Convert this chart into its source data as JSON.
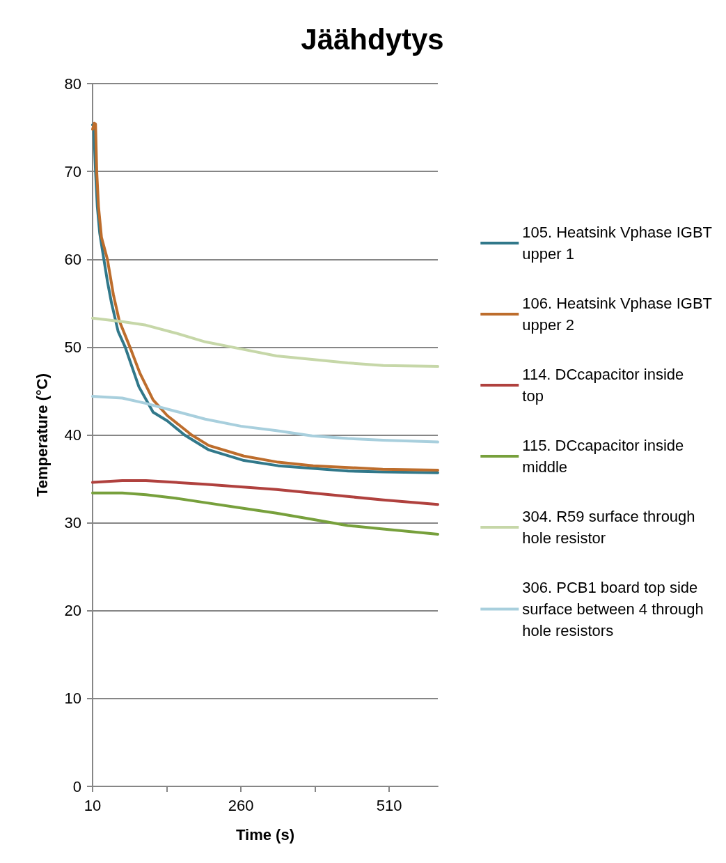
{
  "chart_data": {
    "type": "line",
    "title": "Jäähdytys",
    "xlabel": "Time (s)",
    "ylabel": "Temperature (°C)",
    "xlim": [
      10,
      592
    ],
    "xticks": [
      10,
      {
        "value": 135,
        "label": null
      },
      260,
      {
        "value": 385,
        "label": null
      },
      510
    ],
    "ylim": [
      0,
      80
    ],
    "yticks": [
      0,
      10,
      20,
      30,
      40,
      50,
      60,
      70,
      80
    ],
    "grid": "y",
    "legend": "right",
    "marker": "none",
    "line_style": "solid",
    "series": [
      {
        "name": "105. Heatsink Vphase IGBT upper 1",
        "color": "#31788a",
        "x": [
          10,
          12,
          15,
          18,
          22,
          29,
          35,
          42,
          53,
          65,
          88,
          112,
          136,
          165,
          206,
          265,
          323,
          382,
          441,
          499,
          592
        ],
        "values": [
          75.3,
          75.2,
          70,
          66,
          63,
          60,
          57.5,
          55,
          51.8,
          50,
          45.5,
          42.6,
          41.6,
          40,
          38.3,
          37.1,
          36.5,
          36.2,
          35.9,
          35.8,
          35.7
        ]
      },
      {
        "name": "106. Heatsink Vphase IGBT upper 2",
        "color": "#bd6d2c",
        "x": [
          10,
          13,
          15,
          17,
          20,
          25,
          35,
          45,
          55,
          73,
          90,
          112,
          136,
          177,
          206,
          265,
          323,
          382,
          441,
          499,
          592
        ],
        "values": [
          74.8,
          75.5,
          75.4,
          70,
          66,
          62.5,
          60,
          56,
          53,
          50,
          47,
          44,
          42.2,
          40,
          38.8,
          37.6,
          36.9,
          36.5,
          36.3,
          36.1,
          36
        ]
      },
      {
        "name": "114. DCcapacitor inside top",
        "color": "#b0413e",
        "x": [
          10,
          60,
          100,
          150,
          200,
          260,
          320,
          380,
          440,
          500,
          592
        ],
        "values": [
          34.6,
          34.8,
          34.8,
          34.6,
          34.4,
          34.1,
          33.8,
          33.4,
          33,
          32.6,
          32.1
        ]
      },
      {
        "name": "115. DCcapacitor inside middle",
        "color": "#77a03c",
        "x": [
          10,
          60,
          100,
          150,
          200,
          260,
          320,
          380,
          440,
          500,
          592
        ],
        "values": [
          33.4,
          33.4,
          33.2,
          32.8,
          32.3,
          31.7,
          31.1,
          30.4,
          29.7,
          29.3,
          28.7
        ]
      },
      {
        "name": "304. R59 surface through hole resistor",
        "color": "#c6d7a8",
        "x": [
          10,
          60,
          100,
          150,
          200,
          260,
          320,
          380,
          440,
          500,
          592
        ],
        "values": [
          53.3,
          52.9,
          52.5,
          51.6,
          50.6,
          49.8,
          49,
          48.6,
          48.2,
          47.9,
          47.8
        ]
      },
      {
        "name": "306. PCB1 board top side surface between 4 through hole resistors",
        "color": "#a8cfdd",
        "x": [
          10,
          60,
          100,
          150,
          200,
          260,
          320,
          380,
          440,
          500,
          592
        ],
        "values": [
          44.4,
          44.2,
          43.6,
          42.7,
          41.8,
          41,
          40.5,
          39.9,
          39.6,
          39.4,
          39.2
        ]
      }
    ]
  }
}
